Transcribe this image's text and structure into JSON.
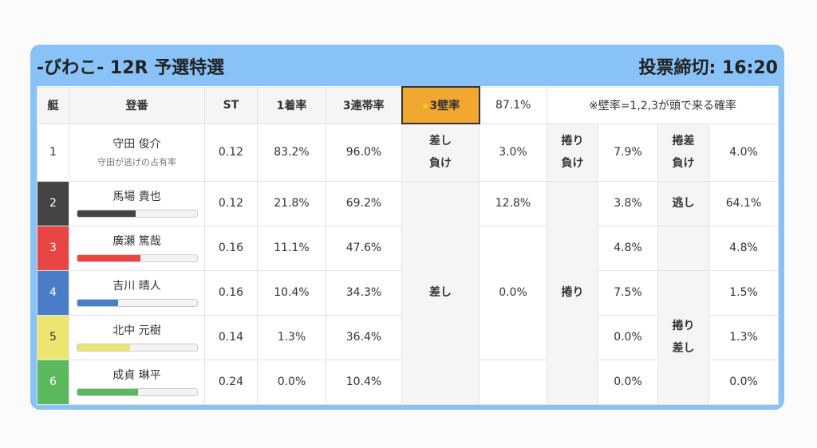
{
  "header": {
    "race_title": "-びわこ- 12R 予選特選",
    "deadline": "投票締切: 16:20"
  },
  "columns": {
    "boat": "艇",
    "racer": "登番",
    "st": "ST",
    "first_rate": "1着率",
    "top3_rate": "3連帯率",
    "wall3_star": "★",
    "wall3_label": "3壁率",
    "wall3_value": "87.1%",
    "note": "※壁率=1,2,3が頭で来る確率"
  },
  "rows": [
    {
      "num": "1",
      "name": "守田 俊介",
      "sub": "守田が逃げの占有率",
      "st": "0.12",
      "first": "83.2%",
      "top3": "96.0%",
      "c1": "3.0%",
      "c2": "7.9%",
      "c3": "4.0%"
    },
    {
      "num": "2",
      "name": "馬場 貴也",
      "st": "0.12",
      "first": "21.8%",
      "top3": "69.2%",
      "c1": "12.8%",
      "c2": "3.8%",
      "c3": "64.1%",
      "bar_pct": 0.49,
      "bar_color": "#444444"
    },
    {
      "num": "3",
      "name": "廣瀬 篤哉",
      "st": "0.16",
      "first": "11.1%",
      "top3": "47.6%",
      "c1": "",
      "c2": "4.8%",
      "c3": "4.8%",
      "bar_pct": 0.53,
      "bar_color": "#e84545"
    },
    {
      "num": "4",
      "name": "吉川 晴人",
      "st": "0.16",
      "first": "10.4%",
      "top3": "34.3%",
      "c1": "0.0%",
      "c2": "7.5%",
      "c3": "1.5%",
      "bar_pct": 0.34,
      "bar_color": "#4a7fc8"
    },
    {
      "num": "5",
      "name": "北中 元樹",
      "st": "0.14",
      "first": "1.3%",
      "top3": "36.4%",
      "c1": "",
      "c2": "0.0%",
      "c3": "1.3%",
      "bar_pct": 0.44,
      "bar_color": "#ece670"
    },
    {
      "num": "6",
      "name": "成貞 琳平",
      "st": "0.24",
      "first": "0.0%",
      "top3": "10.4%",
      "c1": "",
      "c2": "0.0%",
      "c3": "0.0%",
      "bar_pct": 0.51,
      "bar_color": "#5cb85c"
    }
  ],
  "kimarite": {
    "sashi_make_1": "差し",
    "sashi_make_2": "負け",
    "makuri_make_1": "捲り",
    "makuri_make_2": "負け",
    "makurisashi_make_1": "捲差",
    "makurisashi_make_2": "負け",
    "nige": "逃し",
    "sashi": "差し",
    "makuri": "捲り",
    "makurisashi_1": "捲り",
    "makurisashi_2": "差し"
  }
}
